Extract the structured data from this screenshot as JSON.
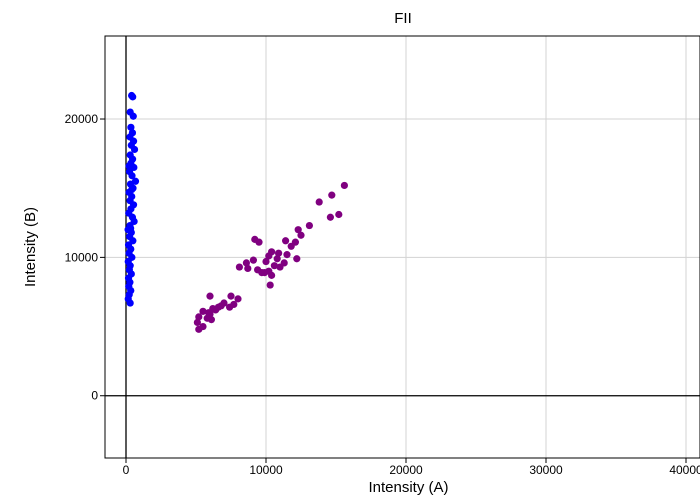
{
  "chart_data": {
    "type": "scatter",
    "title": "FII",
    "xlabel": "Intensity (A)",
    "ylabel": "Intensity (B)",
    "xlim": [
      -1500,
      41000
    ],
    "ylim": [
      -4500,
      26000
    ],
    "grid": true,
    "x_ticks": [
      0,
      10000,
      20000,
      30000,
      40000
    ],
    "y_ticks": [
      0,
      10000,
      20000
    ],
    "x_tick_labels": [
      "0",
      "10000",
      "20000",
      "30000",
      "40000"
    ],
    "y_tick_labels": [
      "0",
      "10000",
      "20000"
    ],
    "reference_lines": {
      "x": 0,
      "y": 0
    },
    "series": [
      {
        "color": "#0000ff",
        "points": [
          [
            400,
            21700
          ],
          [
            480,
            21600
          ],
          [
            300,
            20500
          ],
          [
            520,
            20200
          ],
          [
            350,
            19400
          ],
          [
            460,
            19000
          ],
          [
            280,
            18700
          ],
          [
            540,
            18400
          ],
          [
            380,
            18100
          ],
          [
            610,
            17800
          ],
          [
            300,
            17400
          ],
          [
            470,
            17100
          ],
          [
            350,
            16800
          ],
          [
            560,
            16500
          ],
          [
            250,
            16200
          ],
          [
            430,
            15900
          ],
          [
            680,
            15500
          ],
          [
            320,
            15300
          ],
          [
            500,
            15000
          ],
          [
            220,
            14700
          ],
          [
            410,
            14400
          ],
          [
            290,
            14100
          ],
          [
            540,
            13800
          ],
          [
            350,
            13500
          ],
          [
            200,
            13200
          ],
          [
            460,
            12900
          ],
          [
            580,
            12600
          ],
          [
            280,
            12300
          ],
          [
            150,
            12000
          ],
          [
            380,
            11800
          ],
          [
            260,
            11500
          ],
          [
            490,
            11200
          ],
          [
            180,
            10900
          ],
          [
            340,
            10600
          ],
          [
            220,
            10300
          ],
          [
            420,
            10000
          ],
          [
            160,
            9700
          ],
          [
            300,
            9400
          ],
          [
            240,
            9100
          ],
          [
            380,
            8800
          ],
          [
            180,
            8500
          ],
          [
            280,
            8200
          ],
          [
            200,
            7900
          ],
          [
            340,
            7600
          ],
          [
            230,
            7300
          ],
          [
            160,
            7000
          ],
          [
            300,
            6700
          ],
          [
            410,
            14900
          ],
          [
            220,
            16600
          ],
          [
            330,
            12100
          ]
        ]
      },
      {
        "color": "#800080",
        "points": [
          [
            15600,
            15200
          ],
          [
            14700,
            14500
          ],
          [
            13800,
            14000
          ],
          [
            15200,
            13100
          ],
          [
            14600,
            12900
          ],
          [
            13100,
            12300
          ],
          [
            12300,
            12000
          ],
          [
            12500,
            11600
          ],
          [
            11400,
            11200
          ],
          [
            12100,
            11100
          ],
          [
            9200,
            11300
          ],
          [
            9500,
            11100
          ],
          [
            11800,
            10800
          ],
          [
            10400,
            10400
          ],
          [
            10900,
            10300
          ],
          [
            10200,
            10100
          ],
          [
            11500,
            10200
          ],
          [
            10800,
            9900
          ],
          [
            10000,
            9700
          ],
          [
            12200,
            9900
          ],
          [
            11300,
            9600
          ],
          [
            9100,
            9800
          ],
          [
            10600,
            9400
          ],
          [
            8600,
            9600
          ],
          [
            8100,
            9300
          ],
          [
            10200,
            9000
          ],
          [
            9700,
            8900
          ],
          [
            9400,
            9100
          ],
          [
            11000,
            9300
          ],
          [
            10400,
            8700
          ],
          [
            10300,
            8000
          ],
          [
            8700,
            9200
          ],
          [
            9900,
            8900
          ],
          [
            6000,
            7200
          ],
          [
            7500,
            7200
          ],
          [
            8000,
            7000
          ],
          [
            7000,
            6700
          ],
          [
            7700,
            6600
          ],
          [
            6600,
            6400
          ],
          [
            6200,
            6300
          ],
          [
            7400,
            6400
          ],
          [
            6400,
            6200
          ],
          [
            5500,
            6100
          ],
          [
            6000,
            5900
          ],
          [
            5200,
            5700
          ],
          [
            5800,
            5600
          ],
          [
            5100,
            5300
          ],
          [
            5500,
            5000
          ],
          [
            5200,
            4800
          ],
          [
            6100,
            5500
          ],
          [
            5900,
            6000
          ],
          [
            6800,
            6500
          ]
        ]
      }
    ]
  }
}
